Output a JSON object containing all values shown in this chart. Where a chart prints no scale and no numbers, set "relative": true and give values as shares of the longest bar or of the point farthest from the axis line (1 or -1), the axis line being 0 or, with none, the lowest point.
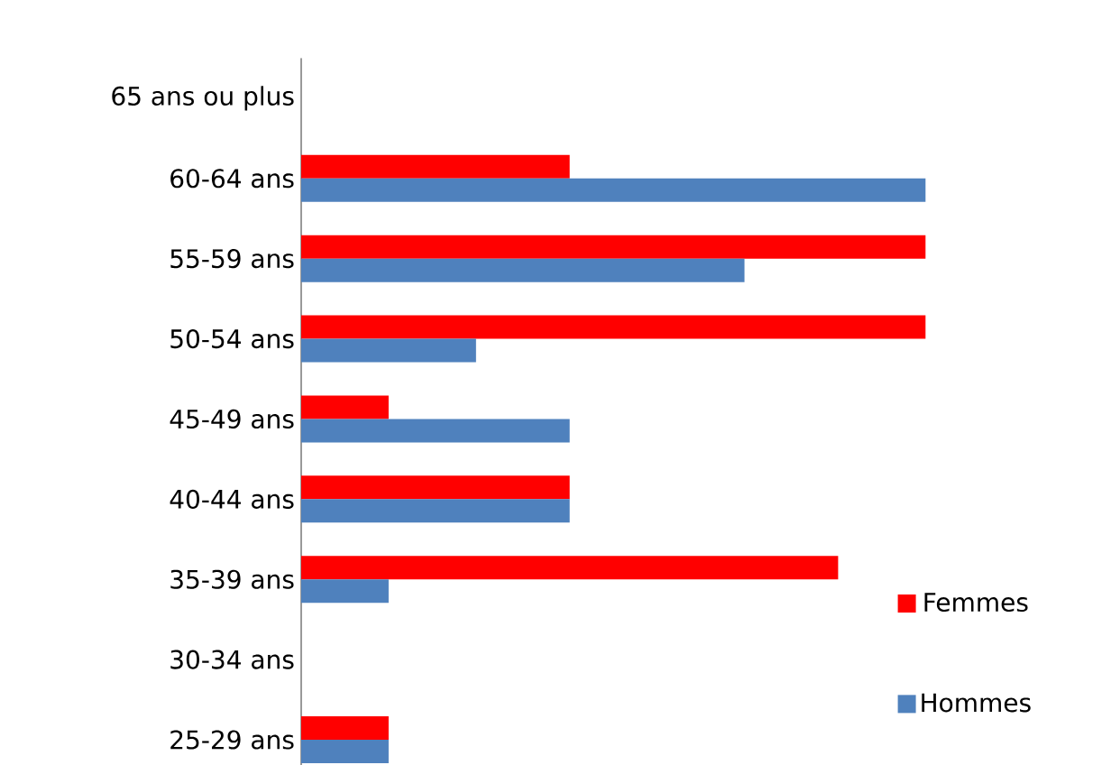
{
  "chart_data": {
    "type": "bar",
    "orientation": "horizontal",
    "relative": true,
    "legend": "right",
    "categories": [
      "65 ans ou plus",
      "60-64 ans",
      "55-59 ans",
      "50-54 ans",
      "45-49 ans",
      "40-44 ans",
      "35-39 ans",
      "30-34 ans",
      "25-29 ans"
    ],
    "series": [
      {
        "name": "Femmes",
        "color": "#ff0000",
        "values": [
          0,
          0.43,
          1,
          1,
          0.14,
          0.43,
          0.86,
          0,
          0.14
        ]
      },
      {
        "name": "Hommes",
        "color": "#4f81bd",
        "values": [
          0,
          1,
          0.71,
          0.28,
          0.43,
          0.43,
          0.14,
          0,
          0.14
        ]
      }
    ]
  }
}
